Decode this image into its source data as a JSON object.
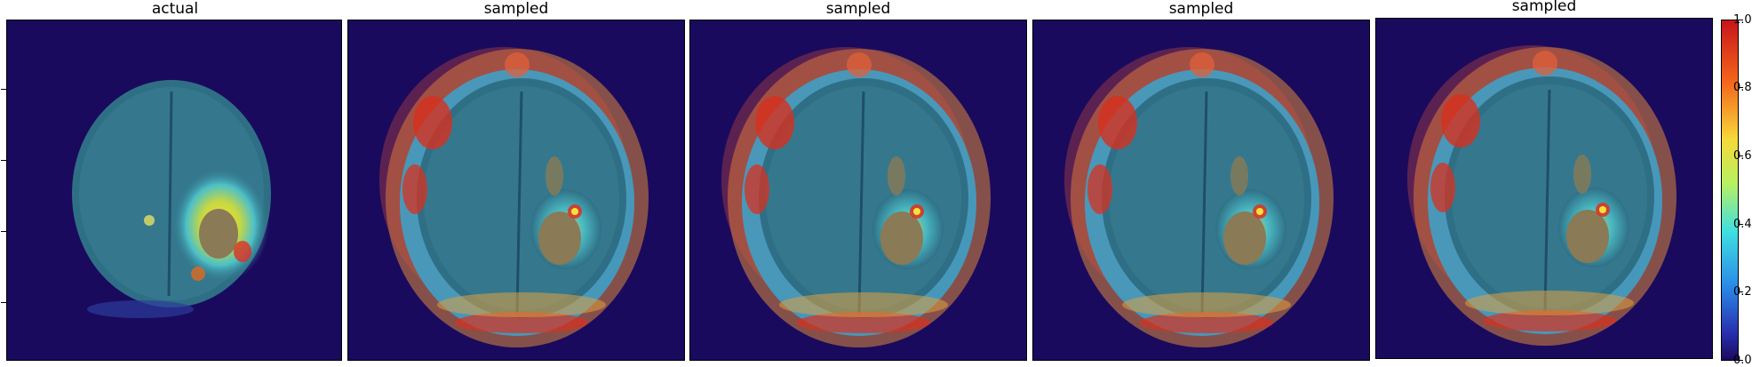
{
  "panels": [
    {
      "title": "actual",
      "kind": "actual"
    },
    {
      "title": "sampled",
      "kind": "sampled"
    },
    {
      "title": "sampled",
      "kind": "sampled"
    },
    {
      "title": "sampled",
      "kind": "sampled"
    },
    {
      "title": "sampled",
      "kind": "sampled"
    }
  ],
  "colorbar": {
    "colormap": "jet",
    "range": [
      0.0,
      1.0
    ],
    "tick_labels": [
      "1.0",
      "0.8",
      "0.6",
      "0.4",
      "0.2",
      "0.0"
    ]
  },
  "colors": {
    "background_map": "#1a0a5e",
    "brain_tissue": "#2f6f86",
    "lesion_core": "#8a7a55",
    "hot": "#e0301e",
    "warm": "#f0d030"
  }
}
